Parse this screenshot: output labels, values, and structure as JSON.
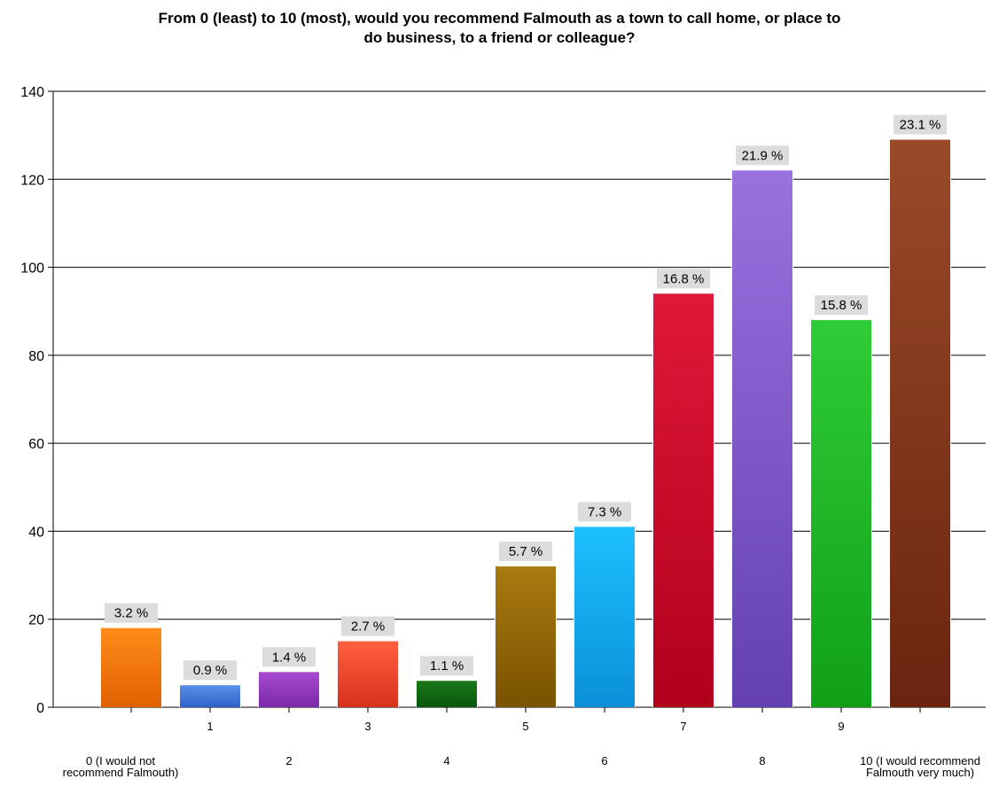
{
  "chart_data": {
    "type": "bar",
    "title_lines": [
      "From 0 (least) to 10 (most), would you recommend Falmouth as a town to call home, or place to",
      "do business, to a friend or colleague?"
    ],
    "xlabel": "",
    "ylabel": "",
    "ylim": [
      0,
      140
    ],
    "yticks": [
      0,
      20,
      40,
      60,
      80,
      100,
      120,
      140
    ],
    "grid": true,
    "legend": "none",
    "categories": [
      [
        "0 (I would not",
        "recommend Falmouth)"
      ],
      [
        "1"
      ],
      [
        "2"
      ],
      [
        "3"
      ],
      [
        "4"
      ],
      [
        "5"
      ],
      [
        "6"
      ],
      [
        "7"
      ],
      [
        "8"
      ],
      [
        "9"
      ],
      [
        "10 (I would recommend",
        "Falmouth very much)"
      ]
    ],
    "values": [
      18,
      5,
      8,
      15,
      6,
      32,
      41,
      94,
      122,
      88,
      129
    ],
    "data_labels": [
      "3.2 %",
      "0.9 %",
      "1.4 %",
      "2.7 %",
      "1.1 %",
      "5.7 %",
      "7.3 %",
      "16.8 %",
      "21.9 %",
      "15.8 %",
      "23.1 %"
    ],
    "colors": [
      [
        "#ff8c1a",
        "#e06000"
      ],
      [
        "#5b8fe8",
        "#2f62c8"
      ],
      [
        "#a84ad0",
        "#7a2aa8"
      ],
      [
        "#ff6040",
        "#d8301c"
      ],
      [
        "#1a7a1a",
        "#0a560a"
      ],
      [
        "#a87a10",
        "#7a5200"
      ],
      [
        "#1ec0ff",
        "#0a90d8"
      ],
      [
        "#e01838",
        "#b0001c"
      ],
      [
        "#9a72e0",
        "#6440b0"
      ],
      [
        "#30cc38",
        "#10a018"
      ],
      [
        "#9a4a28",
        "#6a2410"
      ]
    ]
  }
}
